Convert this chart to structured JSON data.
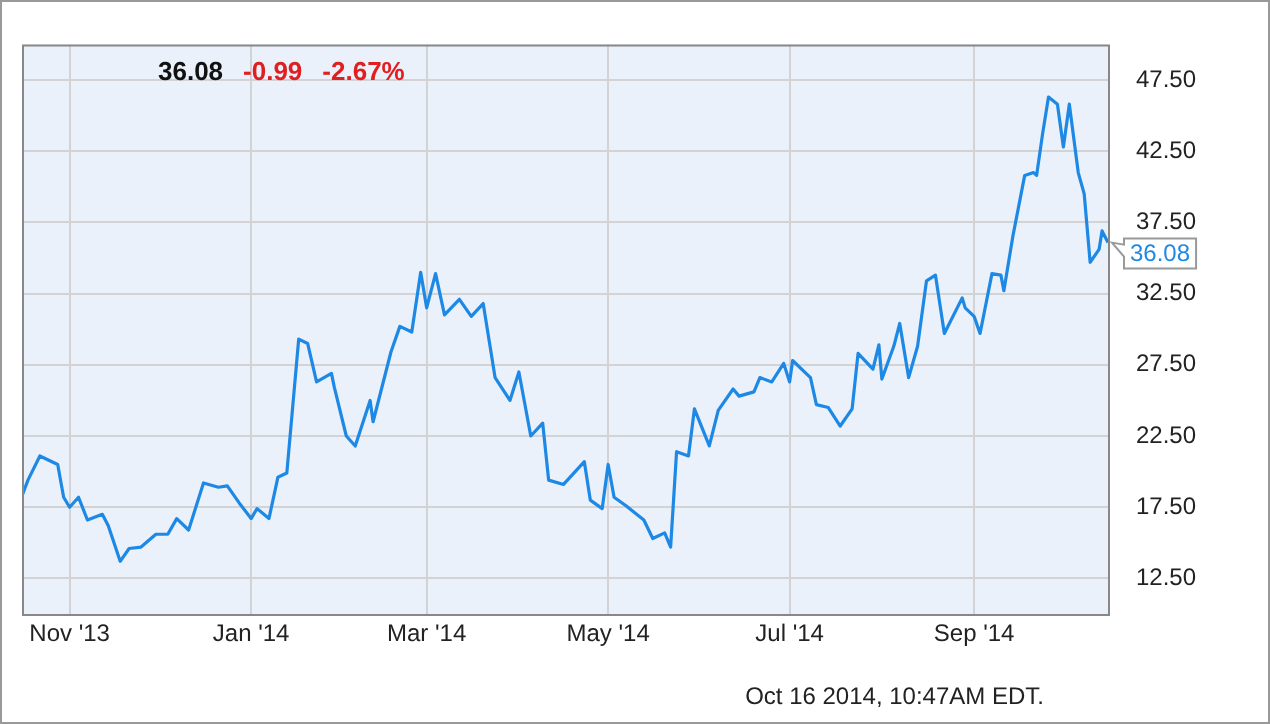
{
  "chart_data": {
    "type": "line",
    "x": [
      "2013-10-16",
      "2013-10-18",
      "2013-10-22",
      "2013-10-28",
      "2013-10-30",
      "2013-11-01",
      "2013-11-04",
      "2013-11-07",
      "2013-11-12",
      "2013-11-14",
      "2013-11-18",
      "2013-11-21",
      "2013-11-25",
      "2013-11-30",
      "2013-12-04",
      "2013-12-07",
      "2013-12-11",
      "2013-12-16",
      "2013-12-21",
      "2013-12-24",
      "2013-12-28",
      "2014-01-01",
      "2014-01-03",
      "2014-01-07",
      "2014-01-10",
      "2014-01-13",
      "2014-01-17",
      "2014-01-20",
      "2014-01-23",
      "2014-01-28",
      "2014-01-29",
      "2014-02-02",
      "2014-02-05",
      "2014-02-10",
      "2014-02-11",
      "2014-02-17",
      "2014-02-20",
      "2014-02-24",
      "2014-02-27",
      "2014-03-01",
      "2014-03-04",
      "2014-03-07",
      "2014-03-12",
      "2014-03-16",
      "2014-03-20",
      "2014-03-24",
      "2014-03-29",
      "2014-04-01",
      "2014-04-05",
      "2014-04-09",
      "2014-04-11",
      "2014-04-16",
      "2014-04-23",
      "2014-04-25",
      "2014-04-29",
      "2014-05-01",
      "2014-05-03",
      "2014-05-07",
      "2014-05-13",
      "2014-05-16",
      "2014-05-20",
      "2014-05-22",
      "2014-05-24",
      "2014-05-28",
      "2014-05-30",
      "2014-06-04",
      "2014-06-07",
      "2014-06-12",
      "2014-06-14",
      "2014-06-19",
      "2014-06-21",
      "2014-06-25",
      "2014-06-29",
      "2014-07-01",
      "2014-07-02",
      "2014-07-08",
      "2014-07-10",
      "2014-07-14",
      "2014-07-18",
      "2014-07-22",
      "2014-07-24",
      "2014-07-29",
      "2014-07-31",
      "2014-08-01",
      "2014-08-05",
      "2014-08-07",
      "2014-08-10",
      "2014-08-13",
      "2014-08-16",
      "2014-08-19",
      "2014-08-22",
      "2014-08-28",
      "2014-08-29",
      "2014-09-01",
      "2014-09-03",
      "2014-09-07",
      "2014-09-10",
      "2014-09-11",
      "2014-09-14",
      "2014-09-18",
      "2014-09-21",
      "2014-09-22",
      "2014-09-24",
      "2014-09-26",
      "2014-09-29",
      "2014-10-01",
      "2014-10-03",
      "2014-10-06",
      "2014-10-08",
      "2014-10-10",
      "2014-10-13",
      "2014-10-14",
      "2014-10-16"
    ],
    "series": [
      {
        "color": "#1e88e5",
        "values": [
          18.3,
          19.4,
          21.1,
          20.5,
          18.2,
          17.5,
          18.2,
          16.6,
          17.0,
          16.2,
          13.7,
          14.6,
          14.7,
          15.6,
          15.6,
          16.7,
          15.9,
          19.2,
          18.9,
          19.0,
          17.8,
          16.7,
          17.4,
          16.7,
          19.6,
          19.9,
          29.3,
          29.0,
          26.3,
          26.9,
          25.9,
          22.5,
          21.8,
          25.0,
          23.5,
          28.4,
          30.2,
          29.8,
          34.0,
          31.5,
          33.9,
          31.0,
          32.1,
          30.9,
          31.8,
          26.6,
          25.0,
          27.0,
          22.5,
          23.4,
          19.4,
          19.1,
          20.7,
          18.0,
          17.4,
          20.5,
          18.2,
          17.6,
          16.6,
          15.3,
          15.7,
          14.7,
          21.4,
          21.1,
          24.4,
          21.8,
          24.3,
          25.8,
          25.3,
          25.6,
          26.6,
          26.3,
          27.6,
          26.3,
          27.8,
          26.6,
          24.7,
          24.5,
          23.2,
          24.4,
          28.3,
          27.2,
          28.9,
          26.5,
          28.8,
          30.4,
          26.6,
          28.8,
          33.4,
          33.8,
          29.7,
          32.2,
          31.5,
          30.9,
          29.7,
          33.9,
          33.8,
          32.7,
          36.5,
          40.8,
          41.0,
          40.8,
          43.7,
          46.3,
          45.8,
          42.8,
          45.8,
          41.0,
          39.5,
          34.7,
          35.6,
          36.9,
          36.08
        ]
      }
    ],
    "xlim": [
      "2013-10-16",
      "2014-10-16"
    ],
    "xticks": [
      {
        "value": "2013-11-01",
        "label": "Nov '13"
      },
      {
        "value": "2014-01-01",
        "label": "Jan '14"
      },
      {
        "value": "2014-03-01",
        "label": "Mar '14"
      },
      {
        "value": "2014-05-01",
        "label": "May '14"
      },
      {
        "value": "2014-07-01",
        "label": "Jul '14"
      },
      {
        "value": "2014-09-01",
        "label": "Sep '14"
      }
    ],
    "ylim": [
      10,
      50
    ],
    "yticks": [
      {
        "value": 12.5,
        "label": "12.50"
      },
      {
        "value": 17.5,
        "label": "17.50"
      },
      {
        "value": 22.5,
        "label": "22.50"
      },
      {
        "value": 27.5,
        "label": "27.50"
      },
      {
        "value": 32.5,
        "label": "32.50"
      },
      {
        "value": 37.5,
        "label": "37.50"
      },
      {
        "value": 42.5,
        "label": "42.50"
      },
      {
        "value": 47.5,
        "label": "47.50"
      }
    ],
    "grid": true,
    "marker": "none",
    "line_style": "solid",
    "legend": false,
    "annotations": [
      "36.08",
      "-0.99",
      "-2.67%",
      {
        "text": "36.08",
        "x": "2014-10-16",
        "y": 36.08
      },
      "Oct 16 2014, 10:47AM EDT."
    ]
  }
}
